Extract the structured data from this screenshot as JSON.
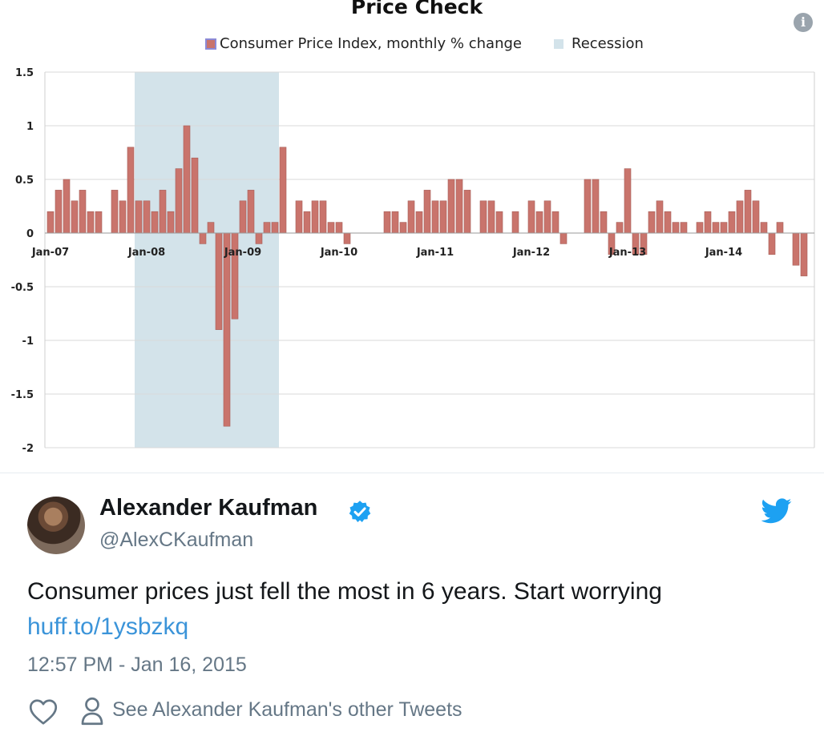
{
  "chart_data": {
    "type": "bar",
    "title": "Price Check",
    "legend": {
      "position": "top",
      "entries": [
        "Consumer Price Index, monthly % change",
        "Recession"
      ]
    },
    "colors": {
      "bar": "#c9746c",
      "bar_stroke": "#a75e57",
      "recession": "#d3e3ea",
      "grid": "#d9d9d9"
    },
    "ylim": [
      -2,
      1.5
    ],
    "yticks": [
      "1.5",
      "1",
      "0.5",
      "0",
      "-0.5",
      "-1",
      "-1.5",
      "-2"
    ],
    "ytick_values": [
      1.5,
      1,
      0.5,
      0,
      -0.5,
      -1,
      -1.5,
      -2
    ],
    "xticks": [
      {
        "label": "Jan-07",
        "index": 0
      },
      {
        "label": "Jan-08",
        "index": 12
      },
      {
        "label": "Jan-09",
        "index": 24
      },
      {
        "label": "Jan-10",
        "index": 36
      },
      {
        "label": "Jan-11",
        "index": 48
      },
      {
        "label": "Jan-12",
        "index": 60
      },
      {
        "label": "Jan-13",
        "index": 72
      },
      {
        "label": "Jan-14",
        "index": 84
      }
    ],
    "recession": {
      "start_index": 11,
      "end_index": 29
    },
    "values": [
      0.2,
      0.4,
      0.5,
      0.3,
      0.4,
      0.2,
      0.2,
      0.0,
      0.4,
      0.3,
      0.8,
      0.3,
      0.3,
      0.2,
      0.4,
      0.2,
      0.6,
      1.0,
      0.7,
      -0.1,
      0.1,
      -0.9,
      -1.8,
      -0.8,
      0.3,
      0.4,
      -0.1,
      0.1,
      0.1,
      0.8,
      0.0,
      0.3,
      0.2,
      0.3,
      0.3,
      0.1,
      0.1,
      -0.1,
      0.0,
      0.0,
      0.0,
      0.0,
      0.2,
      0.2,
      0.1,
      0.3,
      0.2,
      0.4,
      0.3,
      0.3,
      0.5,
      0.5,
      0.4,
      0.0,
      0.3,
      0.3,
      0.2,
      0.0,
      0.2,
      0.0,
      0.3,
      0.2,
      0.3,
      0.2,
      -0.1,
      0.0,
      0.0,
      0.5,
      0.5,
      0.2,
      -0.2,
      0.1,
      0.6,
      -0.2,
      -0.2,
      0.2,
      0.3,
      0.2,
      0.1,
      0.1,
      0.0,
      0.1,
      0.2,
      0.1,
      0.1,
      0.2,
      0.3,
      0.4,
      0.3,
      0.1,
      -0.2,
      0.1,
      0.0,
      -0.3,
      -0.4
    ]
  },
  "tweet": {
    "author_name": "Alexander Kaufman",
    "handle": "@AlexCKaufman",
    "text": "Consumer prices just fell the most in 6 years. Start worrying",
    "link": "huff.to/1ysbzkq",
    "timestamp": "12:57 PM - Jan 16, 2015",
    "other_tweets_label": "See Alexander Kaufman's other Tweets",
    "link_color": "#3b94d9",
    "verified_color": "#1da1f2",
    "brand_color": "#1da1f2"
  }
}
